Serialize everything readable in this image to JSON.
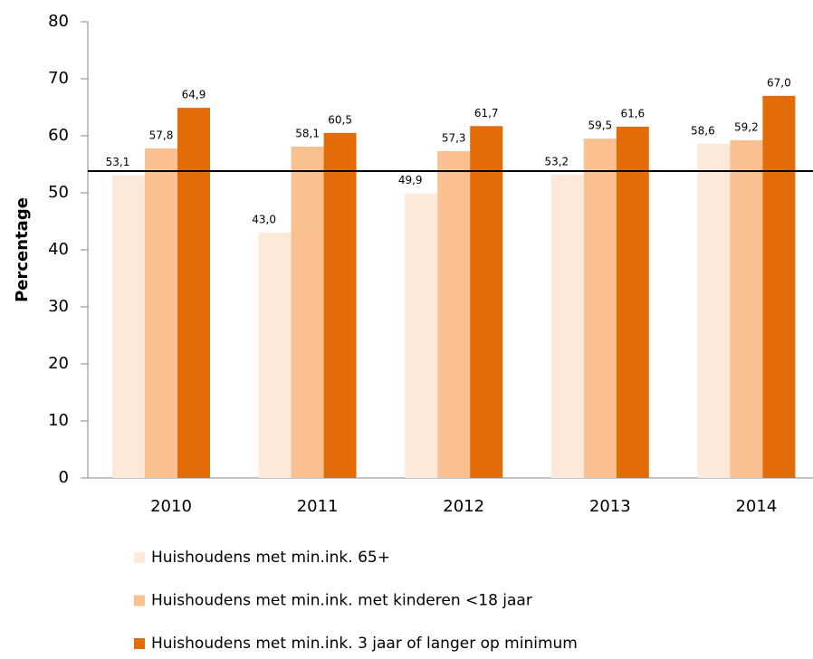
{
  "chart_data": {
    "type": "bar",
    "y_label": "Percentage",
    "categories": [
      "2010",
      "2011",
      "2012",
      "2013",
      "2014"
    ],
    "series": [
      {
        "name": "Huishoudens met min.ink. 65+",
        "color": "#fde9d9",
        "values": [
          53.1,
          43.0,
          49.9,
          53.2,
          58.6
        ],
        "value_labels": [
          "53,1",
          "43,0",
          "49,9",
          "53,2",
          "58,6"
        ]
      },
      {
        "name": "Huishoudens met min.ink. met kinderen <18 jaar",
        "color": "#fac090",
        "values": [
          57.8,
          58.1,
          57.3,
          59.5,
          59.2
        ],
        "value_labels": [
          "57,8",
          "58,1",
          "57,3",
          "59,5",
          "59,2"
        ]
      },
      {
        "name": "Huishoudens met min.ink. 3 jaar of langer op minimum",
        "color": "#e36c09",
        "values": [
          64.9,
          60.5,
          61.7,
          61.6,
          67.0
        ],
        "value_labels": [
          "64,9",
          "60,5",
          "61,7",
          "61,6",
          "67,0"
        ]
      }
    ],
    "reference_line": 53.8,
    "ylim": [
      0,
      80
    ],
    "yticks": [
      0,
      10,
      20,
      30,
      40,
      50,
      60,
      70,
      80
    ],
    "grid": false
  }
}
